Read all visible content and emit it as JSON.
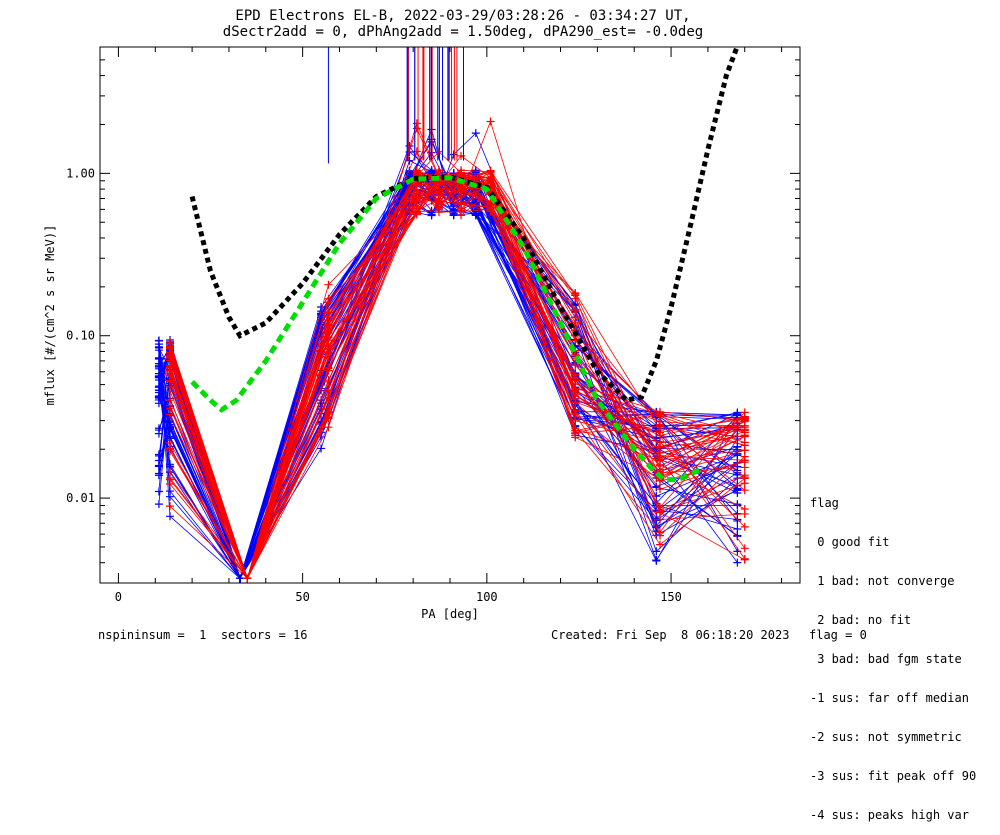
{
  "title_line1": "EPD Electrons EL-B, 2022-03-29/03:28:26 - 03:34:27 UT,",
  "title_line2": "dSectr2add = 0, dPhAng2add = 1.50deg, dPA290_est=  -0.0deg",
  "legend": {
    "title": "flag",
    "items": [
      " 0 good fit",
      " 1 bad: not converge",
      " 2 bad: no fit",
      " 3 bad: bad fgm state",
      "-1 sus: far off median",
      "-2 sus: not symmetric",
      "-3 sus: fit peak off 90",
      "-4 sus: peaks high var"
    ]
  },
  "footer": {
    "nspin": "nspininsum =  1  sectors = 16",
    "created": "Created: Fri Sep  8 06:18:20 2023",
    "flag": "flag = 0"
  },
  "chart_data": {
    "type": "line",
    "xlabel": "PA [deg]",
    "ylabel": "mflux [#/(cm^2 s sr MeV)]",
    "xlim": [
      -5,
      185
    ],
    "ylim": [
      0.003,
      6.0
    ],
    "yscale": "log",
    "xticks": [
      0,
      50,
      100,
      150
    ],
    "xtick_labels": [
      "0",
      "50",
      "100",
      "150"
    ],
    "yticks": [
      0.01,
      0.1,
      1.0
    ],
    "ytick_labels": [
      "0.01",
      "0.10",
      "1.00"
    ],
    "series": [
      {
        "color": "#000000",
        "style": "dotted-thick",
        "x": [
          20,
          25,
          30,
          33,
          40,
          50,
          60,
          70,
          80,
          90,
          100,
          110,
          120,
          130,
          138,
          142,
          146,
          150,
          155,
          160,
          165,
          170
        ],
        "y": [
          0.72,
          0.25,
          0.13,
          0.1,
          0.12,
          0.21,
          0.42,
          0.72,
          0.93,
          0.95,
          0.82,
          0.4,
          0.15,
          0.06,
          0.04,
          0.042,
          0.07,
          0.15,
          0.45,
          1.4,
          4.0,
          8.0
        ]
      },
      {
        "color": "#00dd00",
        "style": "dashed-thick",
        "x": [
          20,
          25,
          28,
          32,
          40,
          50,
          60,
          70,
          80,
          90,
          100,
          110,
          120,
          130,
          140,
          145,
          148,
          152,
          158
        ],
        "y": [
          0.052,
          0.04,
          0.035,
          0.04,
          0.07,
          0.16,
          0.37,
          0.7,
          0.92,
          0.94,
          0.8,
          0.35,
          0.12,
          0.04,
          0.02,
          0.015,
          0.013,
          0.013,
          0.015
        ]
      }
    ],
    "bundles": [
      {
        "color": "#0000ff",
        "x": [
          11,
          14,
          33,
          55,
          79,
          85,
          91,
          97,
          124,
          146,
          168
        ],
        "seed": 7,
        "count": 48
      },
      {
        "color": "#ff0000",
        "x": [
          14,
          35,
          57,
          81,
          87,
          93,
          101,
          124,
          147,
          170
        ],
        "seed": 13,
        "count": 42
      }
    ]
  }
}
